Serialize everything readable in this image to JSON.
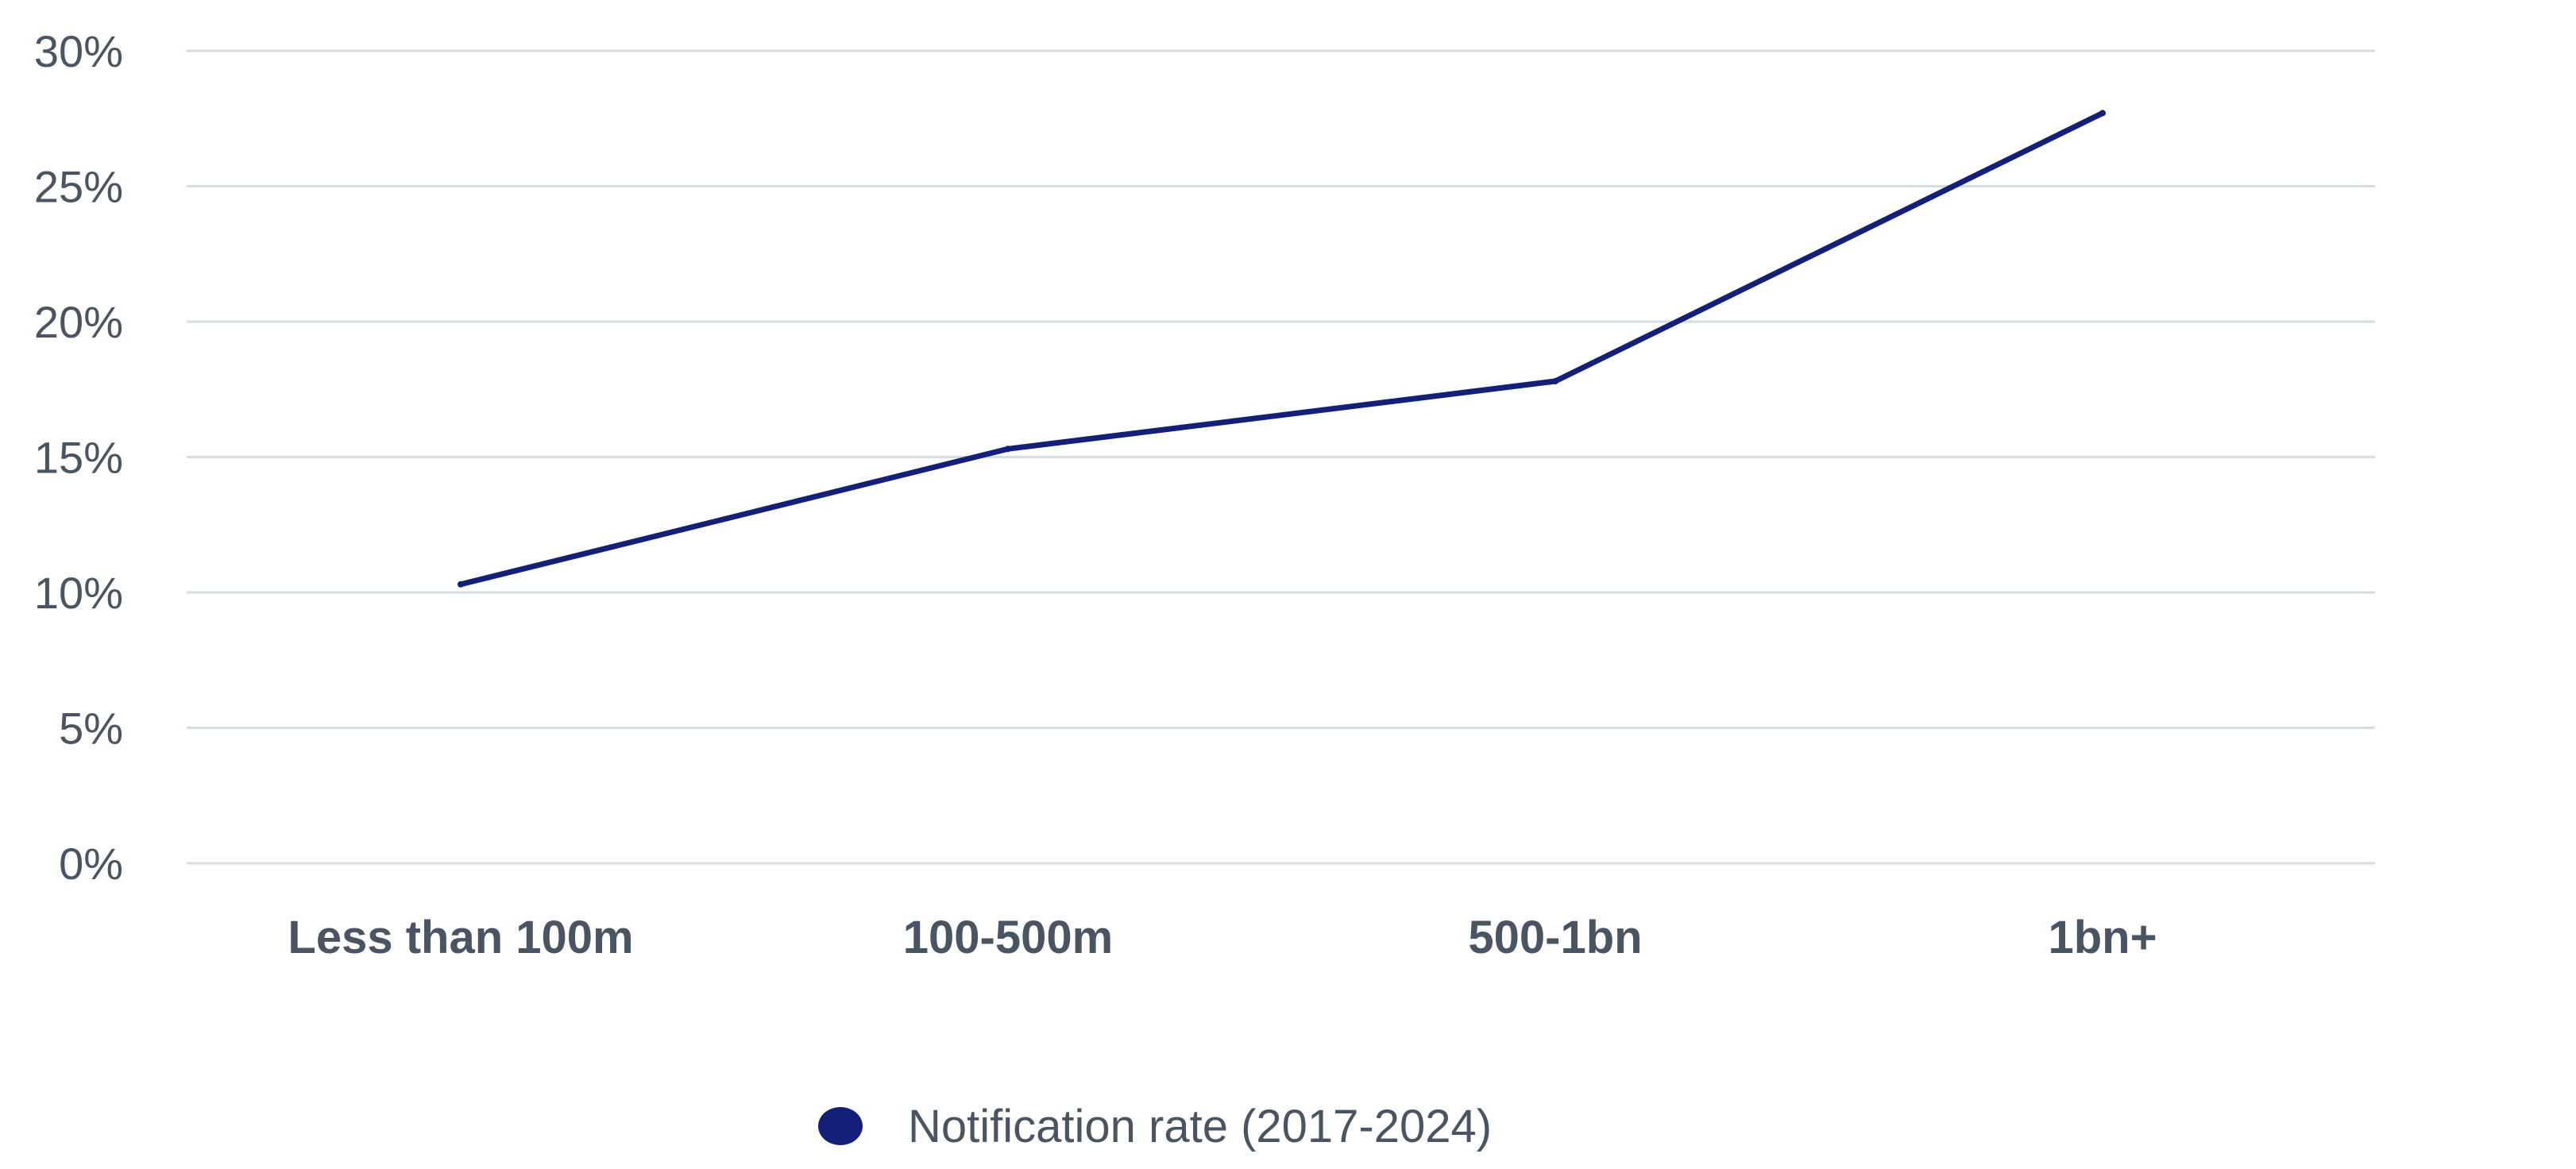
{
  "chart_data": {
    "type": "line",
    "categories": [
      "Less than 100m",
      "100-500m",
      "500-1bn",
      "1bn+"
    ],
    "series": [
      {
        "name": "Notification rate (2017-2024)",
        "values": [
          10.3,
          15.3,
          17.8,
          27.7
        ],
        "color": "#131f78"
      }
    ],
    "ylim": [
      0,
      30
    ],
    "y_ticks": [
      {
        "value": 0,
        "label": "0%"
      },
      {
        "value": 5,
        "label": "5%"
      },
      {
        "value": 10,
        "label": "10%"
      },
      {
        "value": 15,
        "label": "15%"
      },
      {
        "value": 20,
        "label": "20%"
      },
      {
        "value": 25,
        "label": "25%"
      },
      {
        "value": 30,
        "label": "30%"
      }
    ],
    "grid": true,
    "legend_position": "bottom",
    "colors": {
      "grid": "#d3dee2",
      "text": "#4a5563",
      "series": "#131f78"
    }
  }
}
